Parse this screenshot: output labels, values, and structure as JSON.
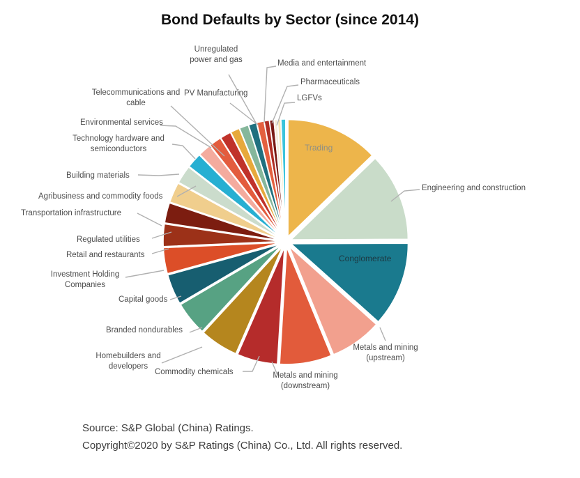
{
  "title": "Bond Defaults by Sector (since 2014)",
  "footer": {
    "source": "Source: S&P Global (China) Ratings.",
    "copyright": "Copyright©2020 by S&P Ratings (China) Co., Ltd. All rights reserved."
  },
  "chart_data": {
    "type": "pie",
    "title": "Bond Defaults by Sector (since 2014)",
    "legend_position": "none",
    "labels": "external with gray leader lines; Trading and Conglomerate labeled inside slices",
    "slices": [
      {
        "label": "Trading",
        "share_pct": 12.8,
        "color": "#EDB54B"
      },
      {
        "label": "Engineering and construction",
        "share_pct": 12.2,
        "color": "#C9DCC9"
      },
      {
        "label": "Conglomerate",
        "share_pct": 11.7,
        "color": "#1A7A8E"
      },
      {
        "label": "Metals and mining\n(upstream)",
        "share_pct": 7.2,
        "color": "#F2A08E"
      },
      {
        "label": "Metals and mining\n(downstream)",
        "share_pct": 7.2,
        "color": "#E25B3B"
      },
      {
        "label": "Commodity chemicals",
        "share_pct": 5.6,
        "color": "#B52C2B"
      },
      {
        "label": "Homebuilders and\ndevelopers",
        "share_pct": 5.3,
        "color": "#B5861E"
      },
      {
        "label": "Branded nondurables",
        "share_pct": 4.7,
        "color": "#57A283"
      },
      {
        "label": "Capital goods",
        "share_pct": 4.2,
        "color": "#175E70"
      },
      {
        "label": "Investment Holding\nCompanies",
        "share_pct": 3.6,
        "color": "#DC4E28"
      },
      {
        "label": "Retail and restaurants",
        "share_pct": 3.1,
        "color": "#9C3118"
      },
      {
        "label": "Regulated utilities",
        "share_pct": 2.8,
        "color": "#7C1D10"
      },
      {
        "label": "Transportation infrastructure",
        "share_pct": 2.8,
        "color": "#F0CE8D"
      },
      {
        "label": "Agribusiness and commodity foods",
        "share_pct": 2.5,
        "color": "#CBDCCC"
      },
      {
        "label": "Building materials",
        "share_pct": 2.1,
        "color": "#27AFD2"
      },
      {
        "label": "Technology hardware and\nsemiconductors",
        "share_pct": 1.8,
        "color": "#F4AB9E"
      },
      {
        "label": "Environmental services",
        "share_pct": 1.7,
        "color": "#E35C3E"
      },
      {
        "label": "Telecommunications and\ncable",
        "share_pct": 1.5,
        "color": "#C0322A"
      },
      {
        "label": "",
        "share_pct": 1.25,
        "color": "#E7A93B"
      },
      {
        "label": "",
        "share_pct": 1.25,
        "color": "#85B79B"
      },
      {
        "label": "",
        "share_pct": 1.1,
        "color": "#20707F"
      },
      {
        "label": "",
        "share_pct": 1.0,
        "color": "#E4603F"
      },
      {
        "label": "Unregulated\npower and gas",
        "share_pct": 0.7,
        "color": "#B02E24"
      },
      {
        "label": "PV Manufacturing",
        "share_pct": 0.6,
        "color": "#7A1A14"
      },
      {
        "label": "Media and entertainment",
        "share_pct": 0.45,
        "color": "#F4ECD9"
      },
      {
        "label": "Pharmaceuticals",
        "share_pct": 0.45,
        "color": "#F4E4B4"
      },
      {
        "label": "LGFVs",
        "share_pct": 0.65,
        "color": "#3BC4DC"
      }
    ]
  }
}
